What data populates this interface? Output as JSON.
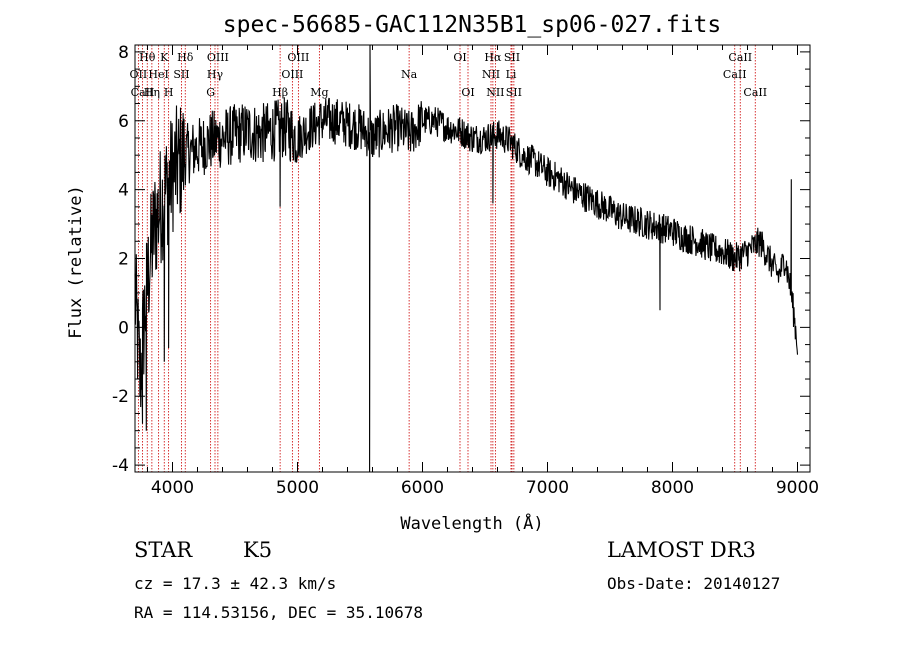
{
  "chart_data": {
    "type": "line",
    "title": "spec-56685-GAC112N35B1_sp06-027.fits",
    "xlabel": "Wavelength (Å)",
    "ylabel": "Flux (relative)",
    "xlim": [
      3700,
      9100
    ],
    "ylim": [
      -4.2,
      8.2
    ],
    "x_ticks": [
      4000,
      5000,
      6000,
      7000,
      8000,
      9000
    ],
    "x_tick_labels": [
      "4000",
      "5000",
      "6000",
      "7000",
      "8000",
      "9000"
    ],
    "y_ticks": [
      -4,
      -2,
      0,
      2,
      4,
      6,
      8
    ],
    "y_tick_labels": [
      "-4",
      "-2",
      "0",
      "2",
      "4",
      "6",
      "8"
    ],
    "line_color": "#000000",
    "marker_color": "#cc0000",
    "spectrum_anchors": {
      "x": [
        3700,
        3740,
        3780,
        3820,
        3860,
        3900,
        3950,
        4000,
        4100,
        4200,
        4300,
        4400,
        4500,
        4600,
        4700,
        4800,
        4900,
        5000,
        5100,
        5200,
        5300,
        5400,
        5500,
        5600,
        5700,
        5800,
        5900,
        6000,
        6100,
        6200,
        6300,
        6400,
        6500,
        6600,
        6700,
        6800,
        6900,
        7000,
        7100,
        7200,
        7300,
        7400,
        7500,
        7600,
        7700,
        7800,
        7900,
        8000,
        8100,
        8200,
        8300,
        8400,
        8500,
        8600,
        8700,
        8800,
        8850,
        8900,
        8950,
        9000
      ],
      "y": [
        1.0,
        -1.5,
        0.5,
        2.0,
        3.0,
        3.5,
        4.0,
        4.5,
        5.0,
        5.2,
        5.4,
        5.5,
        5.6,
        5.7,
        5.6,
        5.7,
        5.8,
        5.5,
        5.8,
        6.0,
        6.0,
        5.9,
        5.8,
        5.5,
        5.7,
        5.8,
        5.6,
        6.0,
        6.0,
        5.8,
        5.7,
        5.5,
        5.5,
        5.6,
        5.4,
        5.0,
        4.8,
        4.5,
        4.3,
        4.0,
        3.8,
        3.6,
        3.4,
        3.2,
        3.1,
        3.0,
        2.9,
        2.8,
        2.6,
        2.5,
        2.3,
        2.2,
        2.0,
        2.2,
        2.5,
        1.8,
        1.5,
        2.0,
        1.0,
        -0.5
      ]
    },
    "spikes": [
      {
        "x": 5577,
        "y": -4.2
      },
      {
        "x": 5580,
        "y": 8.5
      },
      {
        "x": 3760,
        "y": -2.8
      },
      {
        "x": 3790,
        "y": -3.0
      },
      {
        "x": 3934,
        "y": -1.0
      },
      {
        "x": 3969,
        "y": -0.6
      },
      {
        "x": 4861,
        "y": 3.5
      },
      {
        "x": 6563,
        "y": 3.6
      },
      {
        "x": 7900,
        "y": 0.5
      },
      {
        "x": 8950,
        "y": 4.3
      }
    ],
    "lines": [
      {
        "name": "Hθ",
        "x": 3798,
        "row": 0
      },
      {
        "name": "K",
        "x": 3934,
        "row": 0
      },
      {
        "name": "Hδ",
        "x": 4102,
        "row": 0
      },
      {
        "name": "OIII",
        "x": 4363,
        "row": 0
      },
      {
        "name": "OIII",
        "x": 5007,
        "row": 0
      },
      {
        "name": "OI",
        "x": 6300,
        "row": 0
      },
      {
        "name": "Hα",
        "x": 6563,
        "row": 0
      },
      {
        "name": "SII",
        "x": 6716,
        "row": 0
      },
      {
        "name": "CaII",
        "x": 8542,
        "row": 0
      },
      {
        "name": "OII",
        "x": 3727,
        "row": 1
      },
      {
        "name": "HeI",
        "x": 3889,
        "row": 1
      },
      {
        "name": "SII",
        "x": 4072,
        "row": 1
      },
      {
        "name": "Hγ",
        "x": 4340,
        "row": 1
      },
      {
        "name": "OIII",
        "x": 4959,
        "row": 1
      },
      {
        "name": "Na",
        "x": 5893,
        "row": 1
      },
      {
        "name": "NII",
        "x": 6548,
        "row": 1
      },
      {
        "name": "Li",
        "x": 6708,
        "row": 1
      },
      {
        "name": "CaII",
        "x": 8498,
        "row": 1
      },
      {
        "name": "CaII",
        "x": 3760,
        "row": 2
      },
      {
        "name": "Hη",
        "x": 3835,
        "row": 2
      },
      {
        "name": "H",
        "x": 3969,
        "row": 2
      },
      {
        "name": "G",
        "x": 4305,
        "row": 2
      },
      {
        "name": "Hβ",
        "x": 4861,
        "row": 2
      },
      {
        "name": "Mg",
        "x": 5175,
        "row": 2
      },
      {
        "name": "OI",
        "x": 6364,
        "row": 2
      },
      {
        "name": "NII",
        "x": 6583,
        "row": 2
      },
      {
        "name": "SII",
        "x": 6731,
        "row": 2
      },
      {
        "name": "CaII",
        "x": 8662,
        "row": 2
      }
    ]
  },
  "info": {
    "object_class": "STAR",
    "subclass": "K5",
    "survey": "LAMOST DR3",
    "cz": "cz = 17.3 ± 42.3 km/s",
    "obs_date": "Obs-Date: 20140127",
    "coords": "RA = 114.53156, DEC =  35.10678"
  }
}
